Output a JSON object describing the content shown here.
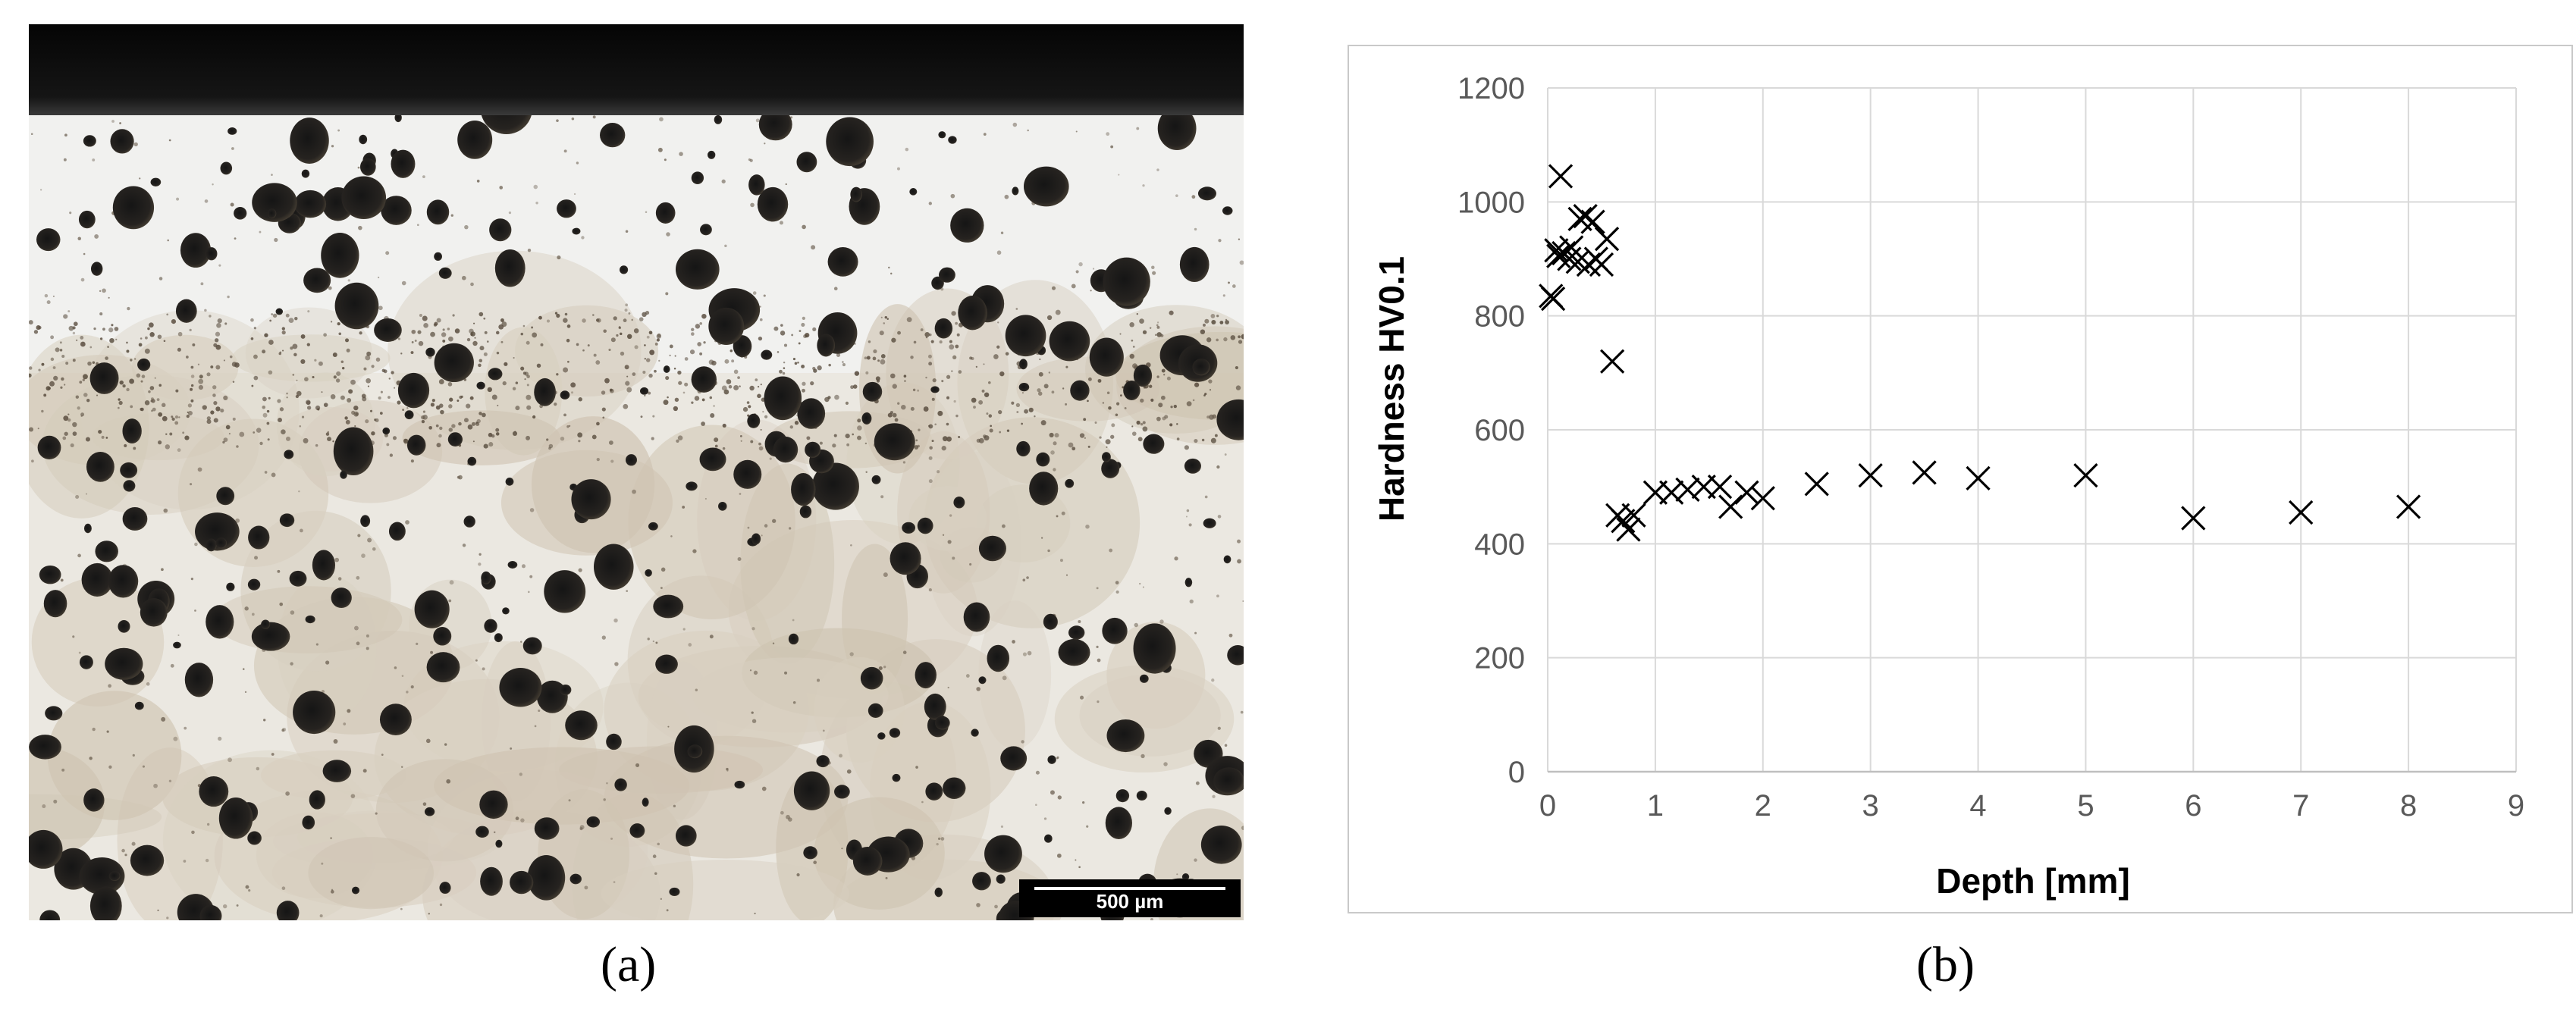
{
  "panels": {
    "left_label": "(a)",
    "right_label": "(b)"
  },
  "micrograph": {
    "scale_bar_text": "500 µm"
  },
  "colors": {
    "marker": "#000000",
    "grid": "#d9d9d9",
    "axis_text": "#595959",
    "axis_title": "#000000",
    "frame": "#c9c9c9"
  },
  "chart_data": {
    "type": "scatter",
    "title": "",
    "xlabel": "Depth [mm]",
    "ylabel": "Hardness HV0.1",
    "xlim": [
      0,
      9
    ],
    "ylim": [
      0,
      1200
    ],
    "xticks": [
      0,
      1,
      2,
      3,
      4,
      5,
      6,
      7,
      8,
      9
    ],
    "yticks": [
      0,
      200,
      400,
      600,
      800,
      1000,
      1200
    ],
    "grid": true,
    "marker": "x",
    "x": [
      0.03,
      0.05,
      0.08,
      0.1,
      0.12,
      0.15,
      0.2,
      0.22,
      0.28,
      0.3,
      0.35,
      0.38,
      0.42,
      0.45,
      0.5,
      0.55,
      0.6,
      0.65,
      0.7,
      0.75,
      0.8,
      1.0,
      1.15,
      1.3,
      1.45,
      1.6,
      1.7,
      1.85,
      2.0,
      2.5,
      3.0,
      3.5,
      4.0,
      5.0,
      6.0,
      7.0,
      8.0
    ],
    "y": [
      835,
      830,
      915,
      905,
      1045,
      910,
      900,
      920,
      895,
      970,
      975,
      890,
      965,
      900,
      890,
      935,
      720,
      450,
      440,
      425,
      450,
      490,
      490,
      495,
      500,
      500,
      465,
      490,
      480,
      505,
      520,
      525,
      515,
      520,
      445,
      455,
      465
    ]
  }
}
